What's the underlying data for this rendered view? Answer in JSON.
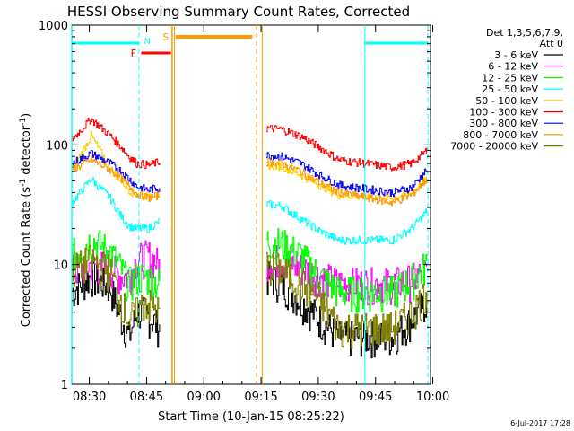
{
  "chart_data": {
    "type": "line",
    "title": "HESSI Observing Summary Count Rates, Corrected",
    "xlabel": "Start Time (10-Jan-15 08:25:22)",
    "ylabel_main": "Corrected Count Rate (s",
    "ylabel_sup1": "-1",
    "ylabel_mid": " detector",
    "ylabel_sup2": "-1",
    "ylabel_end": ")",
    "yscale": "log",
    "ylim": [
      1,
      1000
    ],
    "xlim_minutes": [
      0,
      94
    ],
    "x_ticks": [
      "08:30",
      "08:45",
      "09:00",
      "09:15",
      "09:30",
      "09:45",
      "10:00"
    ],
    "y_ticks": [
      "1",
      "10",
      "100",
      "1000"
    ],
    "timestamp": "6-Jul-2017 17:28",
    "legend": {
      "header1": "Det 1,3,5,6,7,9,",
      "header2": "Att 0",
      "placement": "right-outside"
    },
    "series": [
      {
        "name": "3 - 6 keV",
        "color": "#000000",
        "points": [
          [
            0,
            6
          ],
          [
            5,
            8
          ],
          [
            10,
            6.5
          ],
          [
            13,
            3.5
          ],
          [
            15,
            2.5
          ],
          [
            17,
            4
          ],
          [
            19,
            4
          ],
          [
            23,
            3
          ]
        ],
        "points2": [
          [
            51,
            8
          ],
          [
            55,
            7
          ],
          [
            60,
            5
          ],
          [
            65,
            3.5
          ],
          [
            70,
            2.5
          ],
          [
            84,
            2.5
          ],
          [
            89,
            3.5
          ],
          [
            93,
            5
          ]
        ]
      },
      {
        "name": "6 - 12 keV",
        "color": "#ff00ff",
        "points": [
          [
            0,
            9
          ],
          [
            5,
            10
          ],
          [
            10,
            9.5
          ],
          [
            13,
            8
          ],
          [
            15,
            8
          ],
          [
            17,
            11
          ],
          [
            20,
            12
          ],
          [
            23,
            10
          ]
        ],
        "points2": [
          [
            51,
            11
          ],
          [
            55,
            11
          ],
          [
            60,
            9.5
          ],
          [
            65,
            8
          ],
          [
            70,
            7
          ],
          [
            84,
            7
          ],
          [
            89,
            7.5
          ],
          [
            93,
            9
          ]
        ]
      },
      {
        "name": "12 - 25 keV",
        "color": "#00ff00",
        "points": [
          [
            0,
            12
          ],
          [
            5,
            16
          ],
          [
            10,
            13
          ],
          [
            13,
            9
          ],
          [
            15,
            7
          ],
          [
            17,
            8
          ],
          [
            19,
            8
          ],
          [
            23,
            7
          ]
        ],
        "points2": [
          [
            51,
            16
          ],
          [
            55,
            15
          ],
          [
            60,
            12
          ],
          [
            65,
            8
          ],
          [
            70,
            6
          ],
          [
            84,
            6
          ],
          [
            89,
            7.5
          ],
          [
            93,
            10
          ]
        ]
      },
      {
        "name": "25 - 50 keV",
        "color": "#00ffff",
        "points": [
          [
            0,
            33
          ],
          [
            5,
            52
          ],
          [
            10,
            36
          ],
          [
            13,
            25
          ],
          [
            15,
            21
          ],
          [
            17,
            20
          ],
          [
            20,
            20
          ],
          [
            23,
            23
          ]
        ],
        "points2": [
          [
            51,
            32
          ],
          [
            55,
            31
          ],
          [
            60,
            24
          ],
          [
            65,
            19
          ],
          [
            70,
            16
          ],
          [
            84,
            16
          ],
          [
            89,
            20
          ],
          [
            93,
            28
          ]
        ]
      },
      {
        "name": "50 - 100 keV",
        "color": "#ffcc00",
        "points": [
          [
            0,
            60
          ],
          [
            5,
            120
          ],
          [
            10,
            64
          ],
          [
            13,
            50
          ],
          [
            15,
            42
          ],
          [
            17,
            38
          ],
          [
            20,
            38
          ],
          [
            23,
            40
          ]
        ],
        "points2": [
          [
            51,
            68
          ],
          [
            55,
            66
          ],
          [
            60,
            56
          ],
          [
            65,
            46
          ],
          [
            70,
            38
          ],
          [
            84,
            36
          ],
          [
            89,
            40
          ],
          [
            93,
            52
          ]
        ]
      },
      {
        "name": "100 - 300 keV",
        "color": "#ff0000",
        "points": [
          [
            0,
            110
          ],
          [
            5,
            165
          ],
          [
            10,
            120
          ],
          [
            13,
            95
          ],
          [
            15,
            80
          ],
          [
            17,
            70
          ],
          [
            20,
            68
          ],
          [
            23,
            72
          ]
        ],
        "points2": [
          [
            51,
            138
          ],
          [
            55,
            135
          ],
          [
            60,
            118
          ],
          [
            65,
            95
          ],
          [
            70,
            75
          ],
          [
            84,
            65
          ],
          [
            89,
            70
          ],
          [
            93,
            90
          ]
        ]
      },
      {
        "name": "300 - 800 keV",
        "color": "#0000ff",
        "points": [
          [
            0,
            70
          ],
          [
            5,
            85
          ],
          [
            10,
            70
          ],
          [
            13,
            60
          ],
          [
            15,
            52
          ],
          [
            17,
            45
          ],
          [
            20,
            42
          ],
          [
            23,
            44
          ]
        ],
        "points2": [
          [
            51,
            82
          ],
          [
            55,
            80
          ],
          [
            60,
            70
          ],
          [
            65,
            56
          ],
          [
            70,
            46
          ],
          [
            84,
            40
          ],
          [
            89,
            44
          ],
          [
            93,
            62
          ]
        ]
      },
      {
        "name": "800 - 7000 keV",
        "color": "#ff9900",
        "points": [
          [
            0,
            62
          ],
          [
            5,
            75
          ],
          [
            10,
            62
          ],
          [
            13,
            52
          ],
          [
            15,
            45
          ],
          [
            17,
            39
          ],
          [
            20,
            36
          ],
          [
            23,
            38
          ]
        ],
        "points2": [
          [
            51,
            72
          ],
          [
            55,
            70
          ],
          [
            60,
            60
          ],
          [
            65,
            48
          ],
          [
            70,
            40
          ],
          [
            84,
            33
          ],
          [
            89,
            38
          ],
          [
            93,
            52
          ]
        ]
      },
      {
        "name": "7000 - 20000 keV",
        "color": "#808000",
        "points": [
          [
            0,
            9
          ],
          [
            5,
            11
          ],
          [
            10,
            9
          ],
          [
            13,
            5
          ],
          [
            15,
            3.5
          ],
          [
            17,
            4
          ],
          [
            19,
            5
          ],
          [
            23,
            4
          ]
        ],
        "points2": [
          [
            51,
            10
          ],
          [
            55,
            9
          ],
          [
            60,
            7
          ],
          [
            65,
            5
          ],
          [
            70,
            3
          ],
          [
            84,
            3
          ],
          [
            89,
            4
          ],
          [
            93,
            6
          ]
        ]
      }
    ],
    "annotations": {
      "night_lines_minutes": [
        17.6,
        76.5
      ],
      "night_dashed_minutes": [
        17.6,
        94
      ],
      "saa_solid_minutes": [
        26.5,
        50.2
      ],
      "saa_dashed_minutes": [
        48,
        49.6
      ],
      "labels": {
        "N": "N",
        "F": "F",
        "S": "S"
      },
      "colors": {
        "N": "#00ffff",
        "F": "#ff0000",
        "S": "#ff9900"
      }
    }
  }
}
